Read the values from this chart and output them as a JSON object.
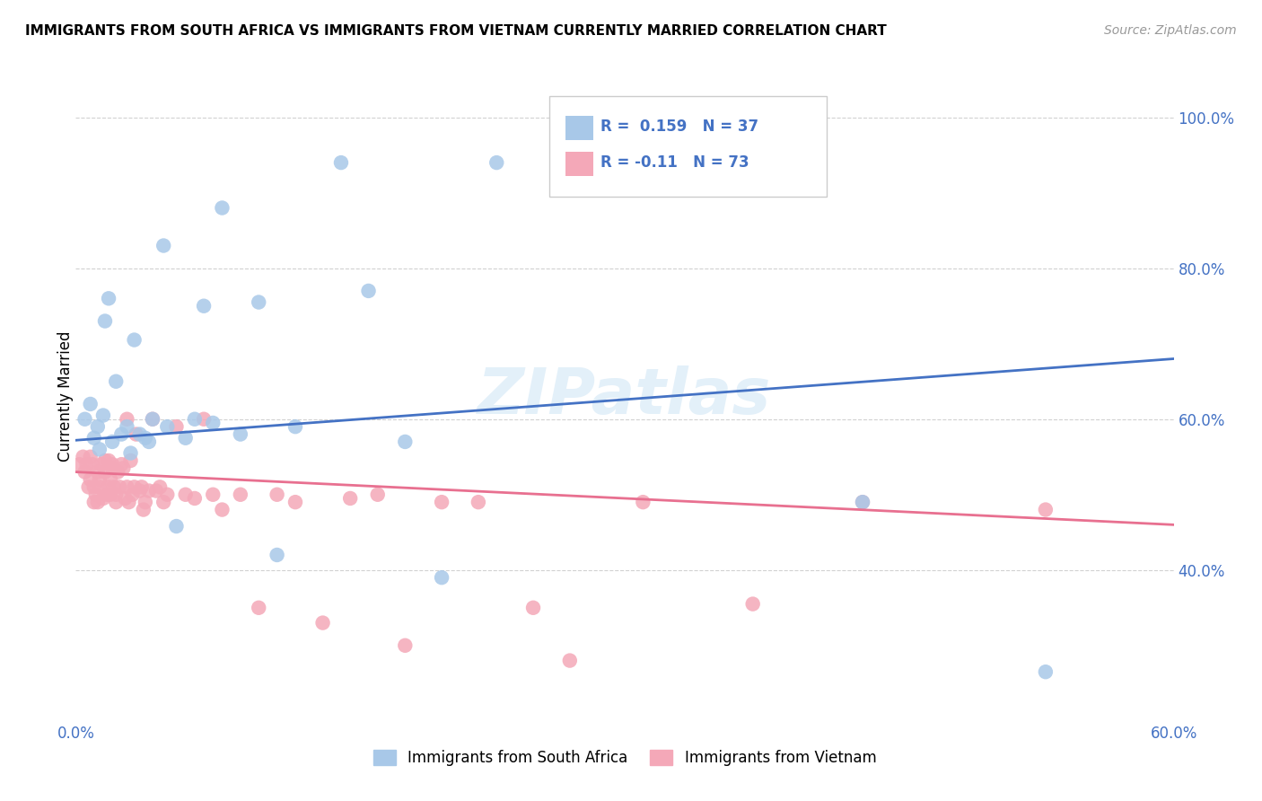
{
  "title": "IMMIGRANTS FROM SOUTH AFRICA VS IMMIGRANTS FROM VIETNAM CURRENTLY MARRIED CORRELATION CHART",
  "source": "Source: ZipAtlas.com",
  "ylabel": "Currently Married",
  "legend_label1": "Immigrants from South Africa",
  "legend_label2": "Immigrants from Vietnam",
  "R1": 0.159,
  "N1": 37,
  "R2": -0.11,
  "N2": 73,
  "color1": "#a8c8e8",
  "color2": "#f4a8b8",
  "line_color1": "#4472C4",
  "line_color2": "#e87090",
  "xlim": [
    0.0,
    0.6
  ],
  "ylim": [
    0.2,
    1.06
  ],
  "yticks": [
    0.4,
    0.6,
    0.8,
    1.0
  ],
  "ytick_labels": [
    "40.0%",
    "60.0%",
    "80.0%",
    "100.0%"
  ],
  "xtick_labels": [
    "0.0%",
    "",
    "",
    "",
    "",
    "",
    "60.0%"
  ],
  "sa_x": [
    0.005,
    0.008,
    0.01,
    0.012,
    0.013,
    0.015,
    0.016,
    0.018,
    0.02,
    0.022,
    0.025,
    0.028,
    0.03,
    0.032,
    0.035,
    0.038,
    0.04,
    0.042,
    0.048,
    0.05,
    0.055,
    0.06,
    0.065,
    0.07,
    0.075,
    0.08,
    0.09,
    0.1,
    0.11,
    0.12,
    0.145,
    0.16,
    0.18,
    0.2,
    0.23,
    0.43,
    0.53
  ],
  "sa_y": [
    0.6,
    0.62,
    0.575,
    0.59,
    0.56,
    0.605,
    0.73,
    0.76,
    0.57,
    0.65,
    0.58,
    0.59,
    0.555,
    0.705,
    0.58,
    0.575,
    0.57,
    0.6,
    0.83,
    0.59,
    0.458,
    0.575,
    0.6,
    0.75,
    0.595,
    0.88,
    0.58,
    0.755,
    0.42,
    0.59,
    0.94,
    0.77,
    0.57,
    0.39,
    0.94,
    0.49,
    0.265
  ],
  "vn_x": [
    0.002,
    0.004,
    0.005,
    0.006,
    0.007,
    0.008,
    0.008,
    0.009,
    0.01,
    0.01,
    0.011,
    0.012,
    0.012,
    0.013,
    0.013,
    0.014,
    0.015,
    0.016,
    0.016,
    0.017,
    0.018,
    0.018,
    0.019,
    0.019,
    0.02,
    0.02,
    0.021,
    0.022,
    0.022,
    0.023,
    0.024,
    0.025,
    0.026,
    0.027,
    0.028,
    0.028,
    0.029,
    0.03,
    0.031,
    0.032,
    0.033,
    0.035,
    0.036,
    0.037,
    0.038,
    0.04,
    0.042,
    0.044,
    0.046,
    0.048,
    0.05,
    0.055,
    0.06,
    0.065,
    0.07,
    0.075,
    0.08,
    0.09,
    0.1,
    0.11,
    0.12,
    0.135,
    0.15,
    0.165,
    0.18,
    0.2,
    0.22,
    0.25,
    0.27,
    0.31,
    0.37,
    0.43,
    0.53
  ],
  "vn_y": [
    0.54,
    0.55,
    0.53,
    0.54,
    0.51,
    0.52,
    0.55,
    0.54,
    0.49,
    0.51,
    0.5,
    0.53,
    0.49,
    0.52,
    0.51,
    0.54,
    0.495,
    0.53,
    0.545,
    0.5,
    0.545,
    0.51,
    0.5,
    0.52,
    0.54,
    0.535,
    0.51,
    0.5,
    0.49,
    0.53,
    0.51,
    0.54,
    0.535,
    0.495,
    0.51,
    0.6,
    0.49,
    0.545,
    0.5,
    0.51,
    0.58,
    0.505,
    0.51,
    0.48,
    0.49,
    0.505,
    0.6,
    0.505,
    0.51,
    0.49,
    0.5,
    0.59,
    0.5,
    0.495,
    0.6,
    0.5,
    0.48,
    0.5,
    0.35,
    0.5,
    0.49,
    0.33,
    0.495,
    0.5,
    0.3,
    0.49,
    0.49,
    0.35,
    0.28,
    0.49,
    0.355,
    0.49,
    0.48
  ],
  "blue_line_x": [
    0.0,
    0.6
  ],
  "blue_line_y": [
    0.572,
    0.68
  ],
  "pink_line_x": [
    0.0,
    0.6
  ],
  "pink_line_y": [
    0.53,
    0.46
  ]
}
